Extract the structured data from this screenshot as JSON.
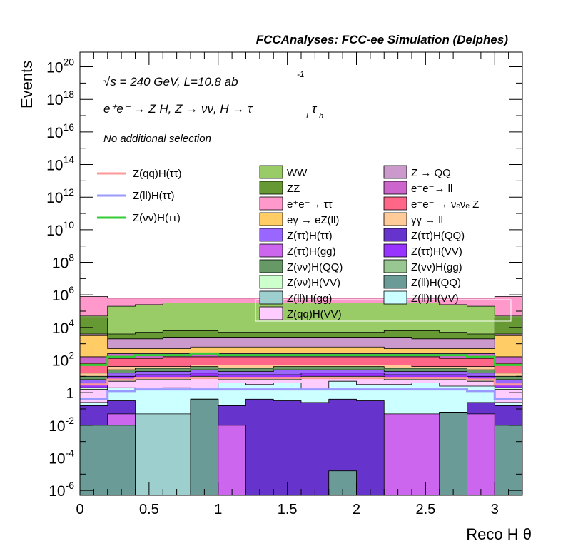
{
  "chart_data": {
    "type": "stacked-step-histogram",
    "title": "FCCAnalyses: FCC-ee Simulation (Delphes)",
    "xlabel": "Reco H θ",
    "ylabel": "Events",
    "xlim": [
      0,
      3.2
    ],
    "ylim_log10": [
      -6.3,
      20.9
    ],
    "yscale": "log",
    "annotations": {
      "energy": "√s = 240 GeV, L=10.8 ab",
      "energy_exp": "-1",
      "process": "e⁺e⁻ → Z H, Z → νν, H → τ",
      "process_sub1": "L",
      "process_mid": "τ",
      "process_sub2": "h",
      "selection": "No additional selection"
    },
    "x_ticks": [
      "0",
      "0.5",
      "1",
      "1.5",
      "2",
      "2.5",
      "3"
    ],
    "x_tick_values": [
      0,
      0.5,
      1,
      1.5,
      2,
      2.5,
      3
    ],
    "y_ticks": [
      {
        "exp": -6,
        "base": "10",
        "sup": "-6"
      },
      {
        "exp": -4,
        "base": "10",
        "sup": "-4"
      },
      {
        "exp": -2,
        "base": "10",
        "sup": "-2"
      },
      {
        "exp": 0,
        "base": "1",
        "sup": ""
      },
      {
        "exp": 2,
        "base": "10",
        "sup": "2"
      },
      {
        "exp": 4,
        "base": "10",
        "sup": "4"
      },
      {
        "exp": 6,
        "base": "10",
        "sup": "6"
      },
      {
        "exp": 8,
        "base": "10",
        "sup": "8"
      },
      {
        "exp": 10,
        "base": "10",
        "sup": "10"
      },
      {
        "exp": 12,
        "base": "10",
        "sup": "12"
      },
      {
        "exp": 14,
        "base": "10",
        "sup": "14"
      },
      {
        "exp": 16,
        "base": "10",
        "sup": "16"
      },
      {
        "exp": 18,
        "base": "10",
        "sup": "18"
      },
      {
        "exp": 20,
        "base": "10",
        "sup": "20"
      }
    ],
    "bin_edges": [
      0,
      0.2,
      0.4,
      0.6,
      0.8,
      1.0,
      1.2,
      1.4,
      1.6,
      1.8,
      2.0,
      2.2,
      2.4,
      2.6,
      2.8,
      3.0,
      3.2
    ],
    "stack": [
      {
        "name": "Z(ll)H(QQ)",
        "color": "#6a9b97",
        "log10": [
          -2.0,
          -2.0,
          -6.3,
          -6.3,
          -0.4,
          -6.3,
          -6.3,
          -6.3,
          -6.3,
          -4.8,
          -6.3,
          -6.3,
          -6.3,
          -1.2,
          -6.3,
          -2.0
        ]
      },
      {
        "name": "Z(ll)H(gg)",
        "color": "#9ecfcf",
        "log10": [
          -6.3,
          -6.3,
          -1.3,
          -1.3,
          -6.3,
          -6.3,
          -6.3,
          -6.3,
          -6.3,
          -6.3,
          -6.3,
          -6.3,
          -6.3,
          -6.3,
          -6.3,
          -6.3
        ]
      },
      {
        "name": "Z(νν)H(gg)",
        "color": "#99c791",
        "log10": [
          -6.3,
          -6.3,
          -6.3,
          -6.3,
          -6.3,
          -6.3,
          -6.3,
          -6.3,
          -6.3,
          -6.3,
          -6.3,
          -6.3,
          -6.3,
          -6.3,
          -6.3,
          -6.3
        ]
      },
      {
        "name": "Z(ττ)H(gg)",
        "color": "#cc66ee",
        "log10": [
          -2.0,
          -1.3,
          -1.3,
          -1.3,
          -0.4,
          -2.0,
          -6.3,
          -6.3,
          -6.3,
          -4.8,
          -6.3,
          -1.3,
          -1.3,
          -1.2,
          -1.3,
          -2.0
        ]
      },
      {
        "name": "Z(ττ)H(QQ)",
        "color": "#6633cc",
        "log10": [
          -0.8,
          -0.5,
          -1.3,
          -1.3,
          -0.4,
          -0.8,
          -0.4,
          -0.5,
          -0.6,
          -0.4,
          -0.5,
          -1.3,
          -1.3,
          -1.2,
          -0.6,
          -0.8
        ]
      },
      {
        "name": "Z(ll)H(VV)",
        "color": "#ccffff",
        "log10": [
          -0.6,
          0.3,
          0.2,
          0.3,
          0.2,
          0.6,
          0.5,
          0.6,
          0.2,
          0.7,
          0.5,
          0.5,
          0.6,
          0.4,
          0.4,
          -0.6
        ]
      },
      {
        "name": "Z(qq)H(VV)",
        "color": "#ffccff",
        "log10": [
          0.2,
          0.7,
          0.8,
          0.8,
          0.9,
          0.8,
          0.8,
          0.8,
          0.9,
          0.9,
          0.9,
          0.8,
          0.8,
          0.8,
          0.7,
          0.2
        ]
      },
      {
        "name": "Z(νν)H(VV)",
        "color": "#ccffcc",
        "log10": [
          0.3,
          0.8,
          0.9,
          0.9,
          1.0,
          0.9,
          0.9,
          0.9,
          1.0,
          1.0,
          1.0,
          0.9,
          0.9,
          0.9,
          0.8,
          0.3
        ]
      },
      {
        "name": "Z(ττ)H(VV)",
        "color": "#9933ff",
        "log10": [
          0.5,
          1.0,
          1.1,
          1.1,
          1.2,
          1.1,
          1.1,
          1.1,
          1.2,
          1.2,
          1.2,
          1.1,
          1.1,
          1.1,
          1.0,
          0.5
        ]
      },
      {
        "name": "Z(ττ)H(ττ)",
        "color": "#9966ff",
        "log10": [
          0.8,
          1.2,
          1.3,
          1.3,
          1.4,
          1.3,
          1.3,
          1.4,
          1.4,
          1.4,
          1.4,
          1.3,
          1.3,
          1.3,
          1.2,
          0.8
        ]
      },
      {
        "name": "Z(νν)H(QQ)",
        "color": "#669966",
        "log10": [
          1.0,
          1.4,
          1.5,
          1.5,
          1.6,
          1.5,
          1.5,
          1.6,
          1.6,
          1.6,
          1.6,
          1.5,
          1.5,
          1.5,
          1.4,
          1.0
        ]
      },
      {
        "name": "γγ → ll",
        "color": "#ffcc99",
        "log10": [
          1.2,
          1.6,
          1.6,
          1.6,
          1.7,
          1.7,
          1.7,
          1.7,
          1.7,
          1.7,
          1.7,
          1.7,
          1.6,
          1.6,
          1.6,
          1.2
        ]
      },
      {
        "name": "e⁺e⁻ → νₑνₑ Z",
        "color": "#ff6688",
        "log10": [
          1.8,
          2.1,
          2.1,
          2.2,
          2.2,
          2.2,
          2.2,
          2.2,
          2.2,
          2.2,
          2.2,
          2.2,
          2.2,
          2.1,
          2.1,
          1.8
        ]
      },
      {
        "name": "e⁺e⁻ → ll",
        "color": "#cc66cc",
        "log10": [
          2.2,
          2.4,
          2.4,
          2.4,
          2.4,
          2.4,
          2.4,
          2.4,
          2.4,
          2.4,
          2.4,
          2.4,
          2.4,
          2.4,
          2.4,
          2.2
        ]
      },
      {
        "name": "eγ → eZ(ll)",
        "color": "#ffcc66",
        "log10": [
          3.5,
          2.7,
          2.7,
          2.7,
          2.8,
          2.8,
          2.8,
          2.8,
          2.8,
          2.8,
          2.8,
          2.7,
          2.7,
          2.7,
          2.7,
          3.5
        ]
      },
      {
        "name": "Z → QQ",
        "color": "#cc99cc",
        "log10": [
          3.6,
          3.3,
          3.3,
          3.4,
          3.4,
          3.4,
          3.4,
          3.4,
          3.4,
          3.4,
          3.4,
          3.4,
          3.3,
          3.3,
          3.3,
          3.6
        ]
      },
      {
        "name": "ZZ",
        "color": "#669933",
        "log10": [
          4.6,
          3.6,
          3.7,
          3.8,
          3.8,
          3.7,
          3.7,
          3.7,
          3.7,
          3.7,
          3.7,
          3.8,
          3.8,
          3.7,
          3.6,
          4.6
        ]
      },
      {
        "name": "WW",
        "color": "#99cc66",
        "log10": [
          4.7,
          5.3,
          5.4,
          5.5,
          5.5,
          5.5,
          5.5,
          5.5,
          5.5,
          5.5,
          5.5,
          5.5,
          5.5,
          5.4,
          5.3,
          4.7
        ]
      },
      {
        "name": "e⁺e⁻ → ττ",
        "color": "#ff99cc",
        "log10": [
          5.9,
          5.8,
          5.8,
          5.8,
          5.8,
          5.8,
          5.8,
          5.8,
          5.8,
          5.8,
          5.8,
          5.8,
          5.8,
          5.8,
          5.8,
          5.9
        ]
      }
    ],
    "signal_lines": [
      {
        "name": "Z(qq)H(ττ)",
        "color": "#ff9999",
        "log10": [
          0.5,
          0.8,
          0.9,
          0.9,
          0.9,
          0.9,
          0.9,
          0.9,
          0.9,
          0.9,
          0.9,
          0.9,
          0.9,
          0.9,
          0.8,
          0.5
        ]
      },
      {
        "name": "Z(ll)H(ττ)",
        "color": "#9999ff",
        "log10": [
          -0.4,
          0.1,
          0.2,
          0.2,
          0.2,
          0.2,
          0.2,
          0.2,
          0.2,
          0.2,
          0.2,
          0.2,
          0.2,
          0.2,
          0.1,
          -0.4
        ]
      },
      {
        "name": "Z(νν)H(ττ)",
        "color": "#33cc33",
        "log10": [
          1.7,
          2.2,
          2.3,
          2.3,
          2.4,
          2.3,
          2.3,
          2.3,
          2.3,
          2.3,
          2.3,
          2.3,
          2.3,
          2.3,
          2.2,
          1.7
        ]
      }
    ],
    "legend_left": [
      "Z(qq)H(ττ)",
      "Z(ll)H(ττ)",
      "Z(νν)H(ττ)"
    ],
    "legend_grid": [
      [
        "WW",
        "Z → QQ"
      ],
      [
        "ZZ",
        "e⁺e⁻→ ll"
      ],
      [
        "e⁺e⁻→ ττ",
        "e⁺e⁻ → νₑνₑ Z"
      ],
      [
        "eγ → eZ(ll)",
        "γγ → ll"
      ],
      [
        "Z(ττ)H(ττ)",
        "Z(ττ)H(QQ)"
      ],
      [
        "Z(ττ)H(gg)",
        "Z(ττ)H(VV)"
      ],
      [
        "Z(νν)H(QQ)",
        "Z(νν)H(gg)"
      ],
      [
        "Z(νν)H(VV)",
        "Z(ll)H(QQ)"
      ],
      [
        "Z(ll)H(gg)",
        "Z(ll)H(VV)"
      ],
      [
        "Z(qq)H(VV)",
        ""
      ]
    ],
    "legend_grid_colors": [
      [
        "#99cc66",
        "#cc99cc"
      ],
      [
        "#669933",
        "#cc66cc"
      ],
      [
        "#ff99cc",
        "#ff6688"
      ],
      [
        "#ffcc66",
        "#ffcc99"
      ],
      [
        "#9966ff",
        "#6633cc"
      ],
      [
        "#cc66ee",
        "#9933ff"
      ],
      [
        "#669966",
        "#99c791"
      ],
      [
        "#ccffcc",
        "#6a9b97"
      ],
      [
        "#9ecfcf",
        "#ccffff"
      ],
      [
        "#ffccff",
        ""
      ]
    ]
  }
}
